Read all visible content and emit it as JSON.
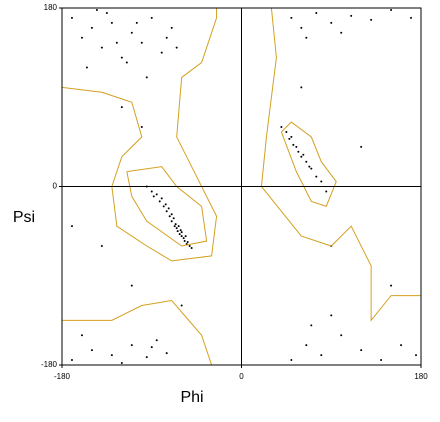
{
  "chart_data": {
    "type": "scatter",
    "x_label": "Phi",
    "y_label": "Psi",
    "xlim": [
      -180,
      180
    ],
    "ylim": [
      -180,
      180
    ],
    "xticks": [
      -180,
      0,
      180
    ],
    "yticks": [
      -180,
      0,
      180
    ],
    "origin_lines": true,
    "contour_color": "#d4a020",
    "series": [
      {
        "color": "#000000",
        "x": [
          -95,
          -90,
          -88,
          -85,
          -82,
          -80,
          -78,
          -76,
          -75,
          -73,
          -72,
          -70,
          -70,
          -68,
          -67,
          -66,
          -65,
          -64,
          -63,
          -62,
          -61,
          -60,
          -60,
          -58,
          -57,
          -56,
          -55,
          -54,
          -52,
          -50,
          -170,
          -160,
          -150,
          -140,
          -130,
          -120,
          -110,
          -100,
          -90,
          -80,
          -70,
          -65,
          -155,
          -135,
          -115,
          -95,
          -75,
          -145,
          -125,
          -105,
          -170,
          -150,
          -130,
          -110,
          -95,
          -85,
          -75,
          -160,
          -120,
          -90,
          40,
          45,
          48,
          50,
          52,
          55,
          57,
          60,
          62,
          65,
          68,
          70,
          75,
          80,
          85,
          50,
          60,
          75,
          90,
          110,
          130,
          150,
          170,
          65,
          100,
          50,
          65,
          80,
          100,
          120,
          140,
          160,
          175,
          70,
          90,
          -100,
          -120,
          -140,
          -60,
          -110,
          60,
          90,
          120,
          150,
          -170
        ],
        "y": [
          0,
          -5,
          -10,
          -8,
          -15,
          -12,
          -20,
          -18,
          -25,
          -22,
          -30,
          -28,
          -35,
          -32,
          -40,
          -38,
          -42,
          -45,
          -40,
          -48,
          -44,
          -50,
          -46,
          -52,
          -55,
          -50,
          -58,
          -56,
          -60,
          -62,
          170,
          150,
          160,
          140,
          165,
          130,
          155,
          145,
          170,
          135,
          160,
          140,
          120,
          175,
          125,
          110,
          150,
          178,
          145,
          165,
          -175,
          -165,
          -170,
          -160,
          -172,
          -155,
          -168,
          -150,
          -178,
          -162,
          60,
          55,
          48,
          50,
          42,
          40,
          35,
          30,
          32,
          25,
          20,
          18,
          10,
          5,
          -5,
          170,
          160,
          175,
          165,
          172,
          168,
          178,
          170,
          150,
          155,
          -175,
          -160,
          -170,
          -150,
          -165,
          -175,
          -160,
          -170,
          -140,
          -130,
          60,
          80,
          -60,
          -120,
          -100,
          100,
          -60,
          40,
          -100,
          -40
        ]
      }
    ],
    "contours": [
      {
        "x": [
          -115,
          -80,
          -65,
          -40,
          -35,
          -60,
          -95,
          -110,
          -115
        ],
        "y": [
          15,
          20,
          0,
          -20,
          -55,
          -60,
          -35,
          -10,
          15
        ]
      },
      {
        "x": [
          40,
          50,
          70,
          80,
          95,
          85,
          70,
          55,
          40
        ],
        "y": [
          55,
          65,
          50,
          25,
          5,
          -20,
          -15,
          15,
          55
        ]
      },
      {
        "x": [
          -180,
          -140,
          -110,
          -100,
          -120,
          -130,
          -125,
          -95,
          -70,
          -30,
          -25,
          -45,
          -65,
          -60,
          -40,
          -25,
          -25
        ],
        "y": [
          100,
          95,
          85,
          50,
          30,
          0,
          -40,
          -60,
          -75,
          -70,
          -30,
          10,
          50,
          110,
          125,
          170,
          180
        ]
      },
      {
        "x": [
          -180,
          -130,
          -100,
          -70,
          -40,
          -30
        ],
        "y": [
          -135,
          -135,
          -120,
          -115,
          -150,
          -180
        ]
      },
      {
        "x": [
          30,
          35,
          30,
          25,
          20,
          40,
          60,
          90,
          110,
          130,
          130,
          150,
          180
        ],
        "y": [
          180,
          130,
          90,
          50,
          0,
          -25,
          -50,
          -60,
          -40,
          -80,
          -135,
          -110,
          -110
        ]
      }
    ]
  }
}
